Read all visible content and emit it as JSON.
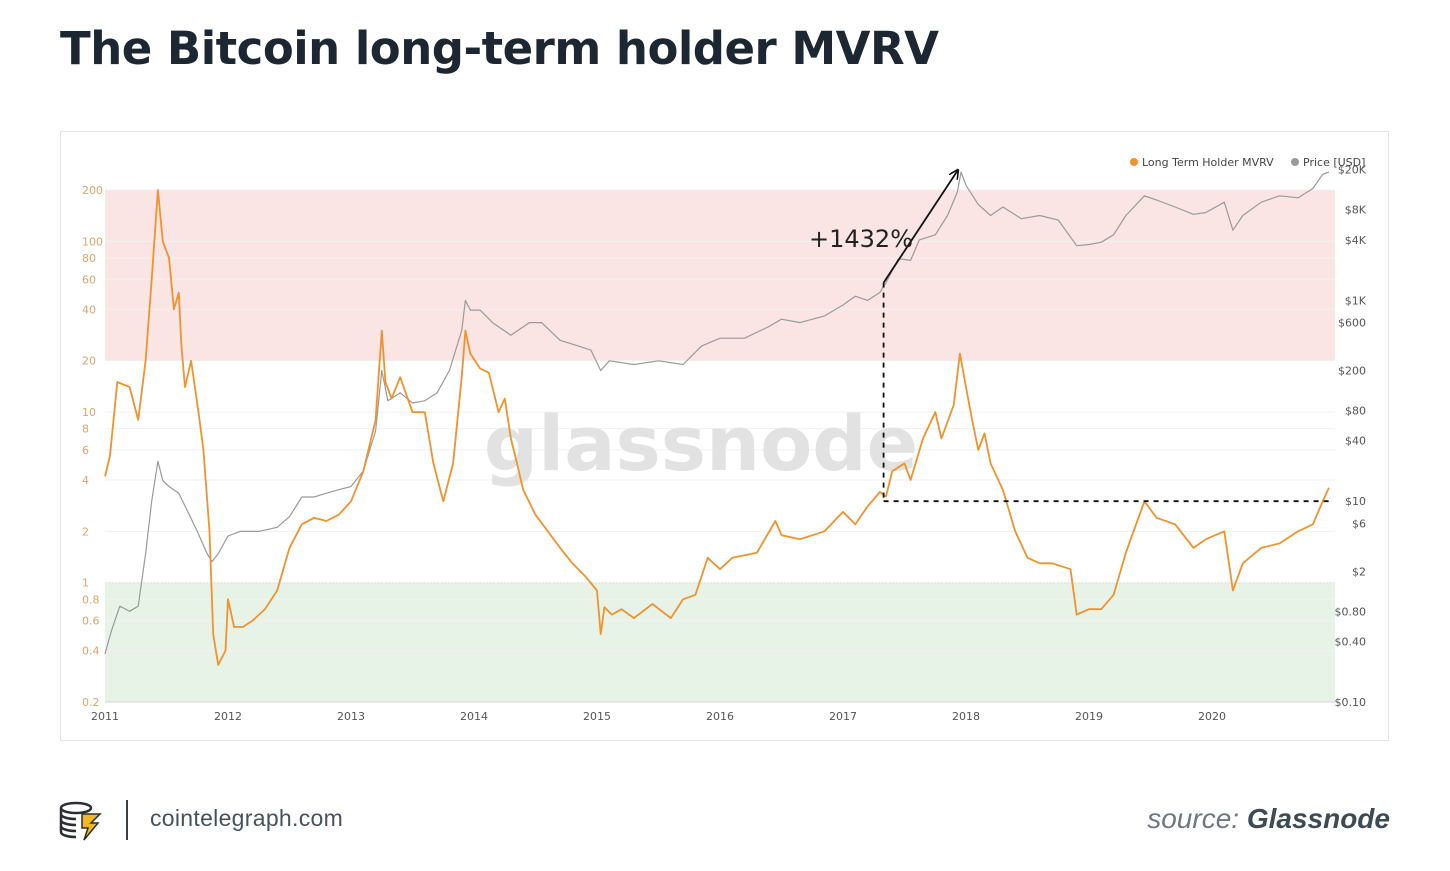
{
  "page": {
    "title": "The Bitcoin long-term holder MVRV",
    "site": "cointelegraph.com",
    "source_label": "source:",
    "source_name": "Glassnode",
    "watermark": "glassnode"
  },
  "colors": {
    "mvrv": "#f0922e",
    "price": "#9a9a9a",
    "title": "#1c2731",
    "overbought_zone": "#fbe4e4",
    "undervalued_zone": "#e8f3e8",
    "left_axis_text": "#e0a46a"
  },
  "chart_data": {
    "type": "line",
    "title": "",
    "legend_position": "top-right",
    "x_ticks": [
      "2011",
      "2012",
      "2013",
      "2014",
      "2015",
      "2016",
      "2017",
      "2018",
      "2019",
      "2020"
    ],
    "x_range": [
      2011.0,
      2021.0
    ],
    "left_axis": {
      "scale": "log",
      "range": [
        0.2,
        300
      ],
      "ticks": [
        {
          "v": 200,
          "label": "200"
        },
        {
          "v": 100,
          "label": "100"
        },
        {
          "v": 80,
          "label": "80"
        },
        {
          "v": 60,
          "label": "60"
        },
        {
          "v": 40,
          "label": "40"
        },
        {
          "v": 20,
          "label": "20"
        },
        {
          "v": 10,
          "label": "10"
        },
        {
          "v": 8,
          "label": "8"
        },
        {
          "v": 6,
          "label": "6"
        },
        {
          "v": 4,
          "label": "4"
        },
        {
          "v": 2,
          "label": "2"
        },
        {
          "v": 1,
          "label": "1"
        },
        {
          "v": 0.8,
          "label": "0.8"
        },
        {
          "v": 0.6,
          "label": "0.6"
        },
        {
          "v": 0.4,
          "label": "0.4"
        },
        {
          "v": 0.2,
          "label": "0.2"
        }
      ]
    },
    "right_axis": {
      "scale": "log",
      "range": [
        0.1,
        25000
      ],
      "ticks": [
        {
          "v": 20000,
          "label": "$20K"
        },
        {
          "v": 8000,
          "label": "$8K"
        },
        {
          "v": 4000,
          "label": "$4K"
        },
        {
          "v": 1000,
          "label": "$1K"
        },
        {
          "v": 600,
          "label": "$600"
        },
        {
          "v": 200,
          "label": "$200"
        },
        {
          "v": 80,
          "label": "$80"
        },
        {
          "v": 40,
          "label": "$40"
        },
        {
          "v": 10,
          "label": "$10"
        },
        {
          "v": 6,
          "label": "$6"
        },
        {
          "v": 2,
          "label": "$2"
        },
        {
          "v": 0.8,
          "label": "$0.80"
        },
        {
          "v": 0.4,
          "label": "$0.40"
        },
        {
          "v": 0.1,
          "label": "$0.10"
        }
      ]
    },
    "zones": [
      {
        "name": "overbought",
        "from": 20,
        "to": 200
      },
      {
        "name": "undervalued",
        "from": 0.2,
        "to": 1
      }
    ],
    "series": [
      {
        "name": "Long Term Holder MVRV",
        "axis": "left",
        "points": [
          [
            2011.0,
            4.2
          ],
          [
            2011.04,
            5.5
          ],
          [
            2011.1,
            15
          ],
          [
            2011.2,
            14
          ],
          [
            2011.27,
            9
          ],
          [
            2011.33,
            20
          ],
          [
            2011.38,
            60
          ],
          [
            2011.43,
            200
          ],
          [
            2011.47,
            100
          ],
          [
            2011.52,
            80
          ],
          [
            2011.56,
            40
          ],
          [
            2011.6,
            50
          ],
          [
            2011.62,
            25
          ],
          [
            2011.65,
            14
          ],
          [
            2011.7,
            20
          ],
          [
            2011.76,
            10
          ],
          [
            2011.8,
            6
          ],
          [
            2011.85,
            2
          ],
          [
            2011.88,
            0.5
          ],
          [
            2011.92,
            0.33
          ],
          [
            2011.98,
            0.4
          ],
          [
            2012.0,
            0.8
          ],
          [
            2012.05,
            0.55
          ],
          [
            2012.12,
            0.55
          ],
          [
            2012.2,
            0.6
          ],
          [
            2012.3,
            0.7
          ],
          [
            2012.4,
            0.9
          ],
          [
            2012.5,
            1.6
          ],
          [
            2012.6,
            2.2
          ],
          [
            2012.7,
            2.4
          ],
          [
            2012.8,
            2.3
          ],
          [
            2012.9,
            2.5
          ],
          [
            2013.0,
            3.0
          ],
          [
            2013.1,
            4.5
          ],
          [
            2013.2,
            9
          ],
          [
            2013.25,
            30
          ],
          [
            2013.28,
            15
          ],
          [
            2013.33,
            12
          ],
          [
            2013.4,
            16
          ],
          [
            2013.5,
            10
          ],
          [
            2013.6,
            10
          ],
          [
            2013.67,
            5
          ],
          [
            2013.75,
            3
          ],
          [
            2013.83,
            5
          ],
          [
            2013.9,
            16
          ],
          [
            2013.93,
            30
          ],
          [
            2013.97,
            22
          ],
          [
            2014.05,
            18
          ],
          [
            2014.12,
            17
          ],
          [
            2014.2,
            10
          ],
          [
            2014.25,
            12
          ],
          [
            2014.3,
            7
          ],
          [
            2014.35,
            5
          ],
          [
            2014.4,
            3.5
          ],
          [
            2014.5,
            2.5
          ],
          [
            2014.6,
            2.0
          ],
          [
            2014.7,
            1.6
          ],
          [
            2014.8,
            1.3
          ],
          [
            2014.9,
            1.1
          ],
          [
            2015.0,
            0.9
          ],
          [
            2015.03,
            0.5
          ],
          [
            2015.06,
            0.72
          ],
          [
            2015.12,
            0.65
          ],
          [
            2015.2,
            0.7
          ],
          [
            2015.3,
            0.62
          ],
          [
            2015.45,
            0.75
          ],
          [
            2015.6,
            0.62
          ],
          [
            2015.7,
            0.8
          ],
          [
            2015.8,
            0.85
          ],
          [
            2015.9,
            1.4
          ],
          [
            2016.0,
            1.2
          ],
          [
            2016.1,
            1.4
          ],
          [
            2016.3,
            1.5
          ],
          [
            2016.45,
            2.3
          ],
          [
            2016.5,
            1.9
          ],
          [
            2016.65,
            1.8
          ],
          [
            2016.85,
            2.0
          ],
          [
            2017.0,
            2.6
          ],
          [
            2017.1,
            2.2
          ],
          [
            2017.2,
            2.8
          ],
          [
            2017.3,
            3.4
          ],
          [
            2017.35,
            3.2
          ],
          [
            2017.4,
            4.5
          ],
          [
            2017.5,
            5.0
          ],
          [
            2017.55,
            4.0
          ],
          [
            2017.65,
            7
          ],
          [
            2017.75,
            10
          ],
          [
            2017.8,
            7
          ],
          [
            2017.9,
            11
          ],
          [
            2017.95,
            22
          ],
          [
            2018.0,
            14
          ],
          [
            2018.05,
            9
          ],
          [
            2018.1,
            6
          ],
          [
            2018.15,
            7.5
          ],
          [
            2018.2,
            5
          ],
          [
            2018.3,
            3.5
          ],
          [
            2018.4,
            2.0
          ],
          [
            2018.5,
            1.4
          ],
          [
            2018.6,
            1.3
          ],
          [
            2018.7,
            1.3
          ],
          [
            2018.85,
            1.2
          ],
          [
            2018.9,
            0.65
          ],
          [
            2019.0,
            0.7
          ],
          [
            2019.1,
            0.7
          ],
          [
            2019.2,
            0.85
          ],
          [
            2019.3,
            1.5
          ],
          [
            2019.45,
            3.0
          ],
          [
            2019.55,
            2.4
          ],
          [
            2019.7,
            2.2
          ],
          [
            2019.85,
            1.6
          ],
          [
            2019.95,
            1.8
          ],
          [
            2020.1,
            2.0
          ],
          [
            2020.17,
            0.9
          ],
          [
            2020.25,
            1.3
          ],
          [
            2020.4,
            1.6
          ],
          [
            2020.55,
            1.7
          ],
          [
            2020.7,
            2.0
          ],
          [
            2020.82,
            2.2
          ],
          [
            2020.9,
            3.0
          ],
          [
            2020.95,
            3.6
          ]
        ]
      },
      {
        "name": "Price [USD]",
        "axis": "right",
        "points": [
          [
            2011.0,
            0.3
          ],
          [
            2011.05,
            0.5
          ],
          [
            2011.12,
            0.9
          ],
          [
            2011.2,
            0.8
          ],
          [
            2011.27,
            0.9
          ],
          [
            2011.33,
            3
          ],
          [
            2011.38,
            10
          ],
          [
            2011.43,
            25
          ],
          [
            2011.47,
            16
          ],
          [
            2011.52,
            14
          ],
          [
            2011.6,
            12
          ],
          [
            2011.67,
            8
          ],
          [
            2011.75,
            5
          ],
          [
            2011.83,
            3
          ],
          [
            2011.87,
            2.5
          ],
          [
            2011.92,
            3
          ],
          [
            2012.0,
            4.5
          ],
          [
            2012.1,
            5
          ],
          [
            2012.25,
            5
          ],
          [
            2012.4,
            5.5
          ],
          [
            2012.5,
            7
          ],
          [
            2012.6,
            11
          ],
          [
            2012.7,
            11
          ],
          [
            2012.8,
            12
          ],
          [
            2012.9,
            13
          ],
          [
            2013.0,
            14
          ],
          [
            2013.1,
            20
          ],
          [
            2013.2,
            50
          ],
          [
            2013.25,
            200
          ],
          [
            2013.3,
            100
          ],
          [
            2013.4,
            120
          ],
          [
            2013.5,
            95
          ],
          [
            2013.6,
            100
          ],
          [
            2013.7,
            120
          ],
          [
            2013.8,
            200
          ],
          [
            2013.9,
            500
          ],
          [
            2013.93,
            1000
          ],
          [
            2013.97,
            800
          ],
          [
            2014.05,
            800
          ],
          [
            2014.15,
            600
          ],
          [
            2014.3,
            450
          ],
          [
            2014.45,
            600
          ],
          [
            2014.55,
            600
          ],
          [
            2014.7,
            400
          ],
          [
            2014.85,
            350
          ],
          [
            2014.95,
            320
          ],
          [
            2015.03,
            200
          ],
          [
            2015.1,
            250
          ],
          [
            2015.3,
            230
          ],
          [
            2015.5,
            250
          ],
          [
            2015.7,
            230
          ],
          [
            2015.85,
            350
          ],
          [
            2016.0,
            420
          ],
          [
            2016.2,
            420
          ],
          [
            2016.4,
            550
          ],
          [
            2016.5,
            650
          ],
          [
            2016.65,
            600
          ],
          [
            2016.85,
            700
          ],
          [
            2017.0,
            900
          ],
          [
            2017.1,
            1100
          ],
          [
            2017.2,
            1000
          ],
          [
            2017.3,
            1200
          ],
          [
            2017.35,
            1500
          ],
          [
            2017.45,
            2600
          ],
          [
            2017.55,
            2500
          ],
          [
            2017.62,
            4000
          ],
          [
            2017.75,
            4500
          ],
          [
            2017.85,
            7000
          ],
          [
            2017.93,
            12000
          ],
          [
            2017.96,
            19000
          ],
          [
            2018.0,
            14000
          ],
          [
            2018.1,
            9000
          ],
          [
            2018.2,
            7000
          ],
          [
            2018.3,
            8500
          ],
          [
            2018.45,
            6500
          ],
          [
            2018.6,
            7000
          ],
          [
            2018.75,
            6300
          ],
          [
            2018.9,
            3500
          ],
          [
            2019.0,
            3600
          ],
          [
            2019.1,
            3800
          ],
          [
            2019.2,
            4500
          ],
          [
            2019.3,
            7000
          ],
          [
            2019.45,
            11000
          ],
          [
            2019.55,
            10000
          ],
          [
            2019.7,
            8500
          ],
          [
            2019.85,
            7200
          ],
          [
            2019.95,
            7500
          ],
          [
            2020.1,
            9500
          ],
          [
            2020.17,
            5000
          ],
          [
            2020.25,
            7000
          ],
          [
            2020.4,
            9500
          ],
          [
            2020.55,
            11000
          ],
          [
            2020.7,
            10500
          ],
          [
            2020.82,
            13000
          ],
          [
            2020.9,
            18000
          ],
          [
            2020.95,
            19000
          ]
        ]
      }
    ],
    "annotations": [
      {
        "type": "text",
        "text": "+1432%"
      },
      {
        "type": "arrow",
        "from": [
          2017.33,
          1500
        ],
        "to": [
          2017.93,
          19500
        ],
        "axis": "right"
      },
      {
        "type": "dashed_vertical",
        "x": 2017.33,
        "from": 1500,
        "to": 10,
        "axis": "right"
      },
      {
        "type": "dashed_horizontal",
        "y": 10,
        "from": 2017.33,
        "to": 2020.95,
        "axis": "right"
      }
    ]
  }
}
